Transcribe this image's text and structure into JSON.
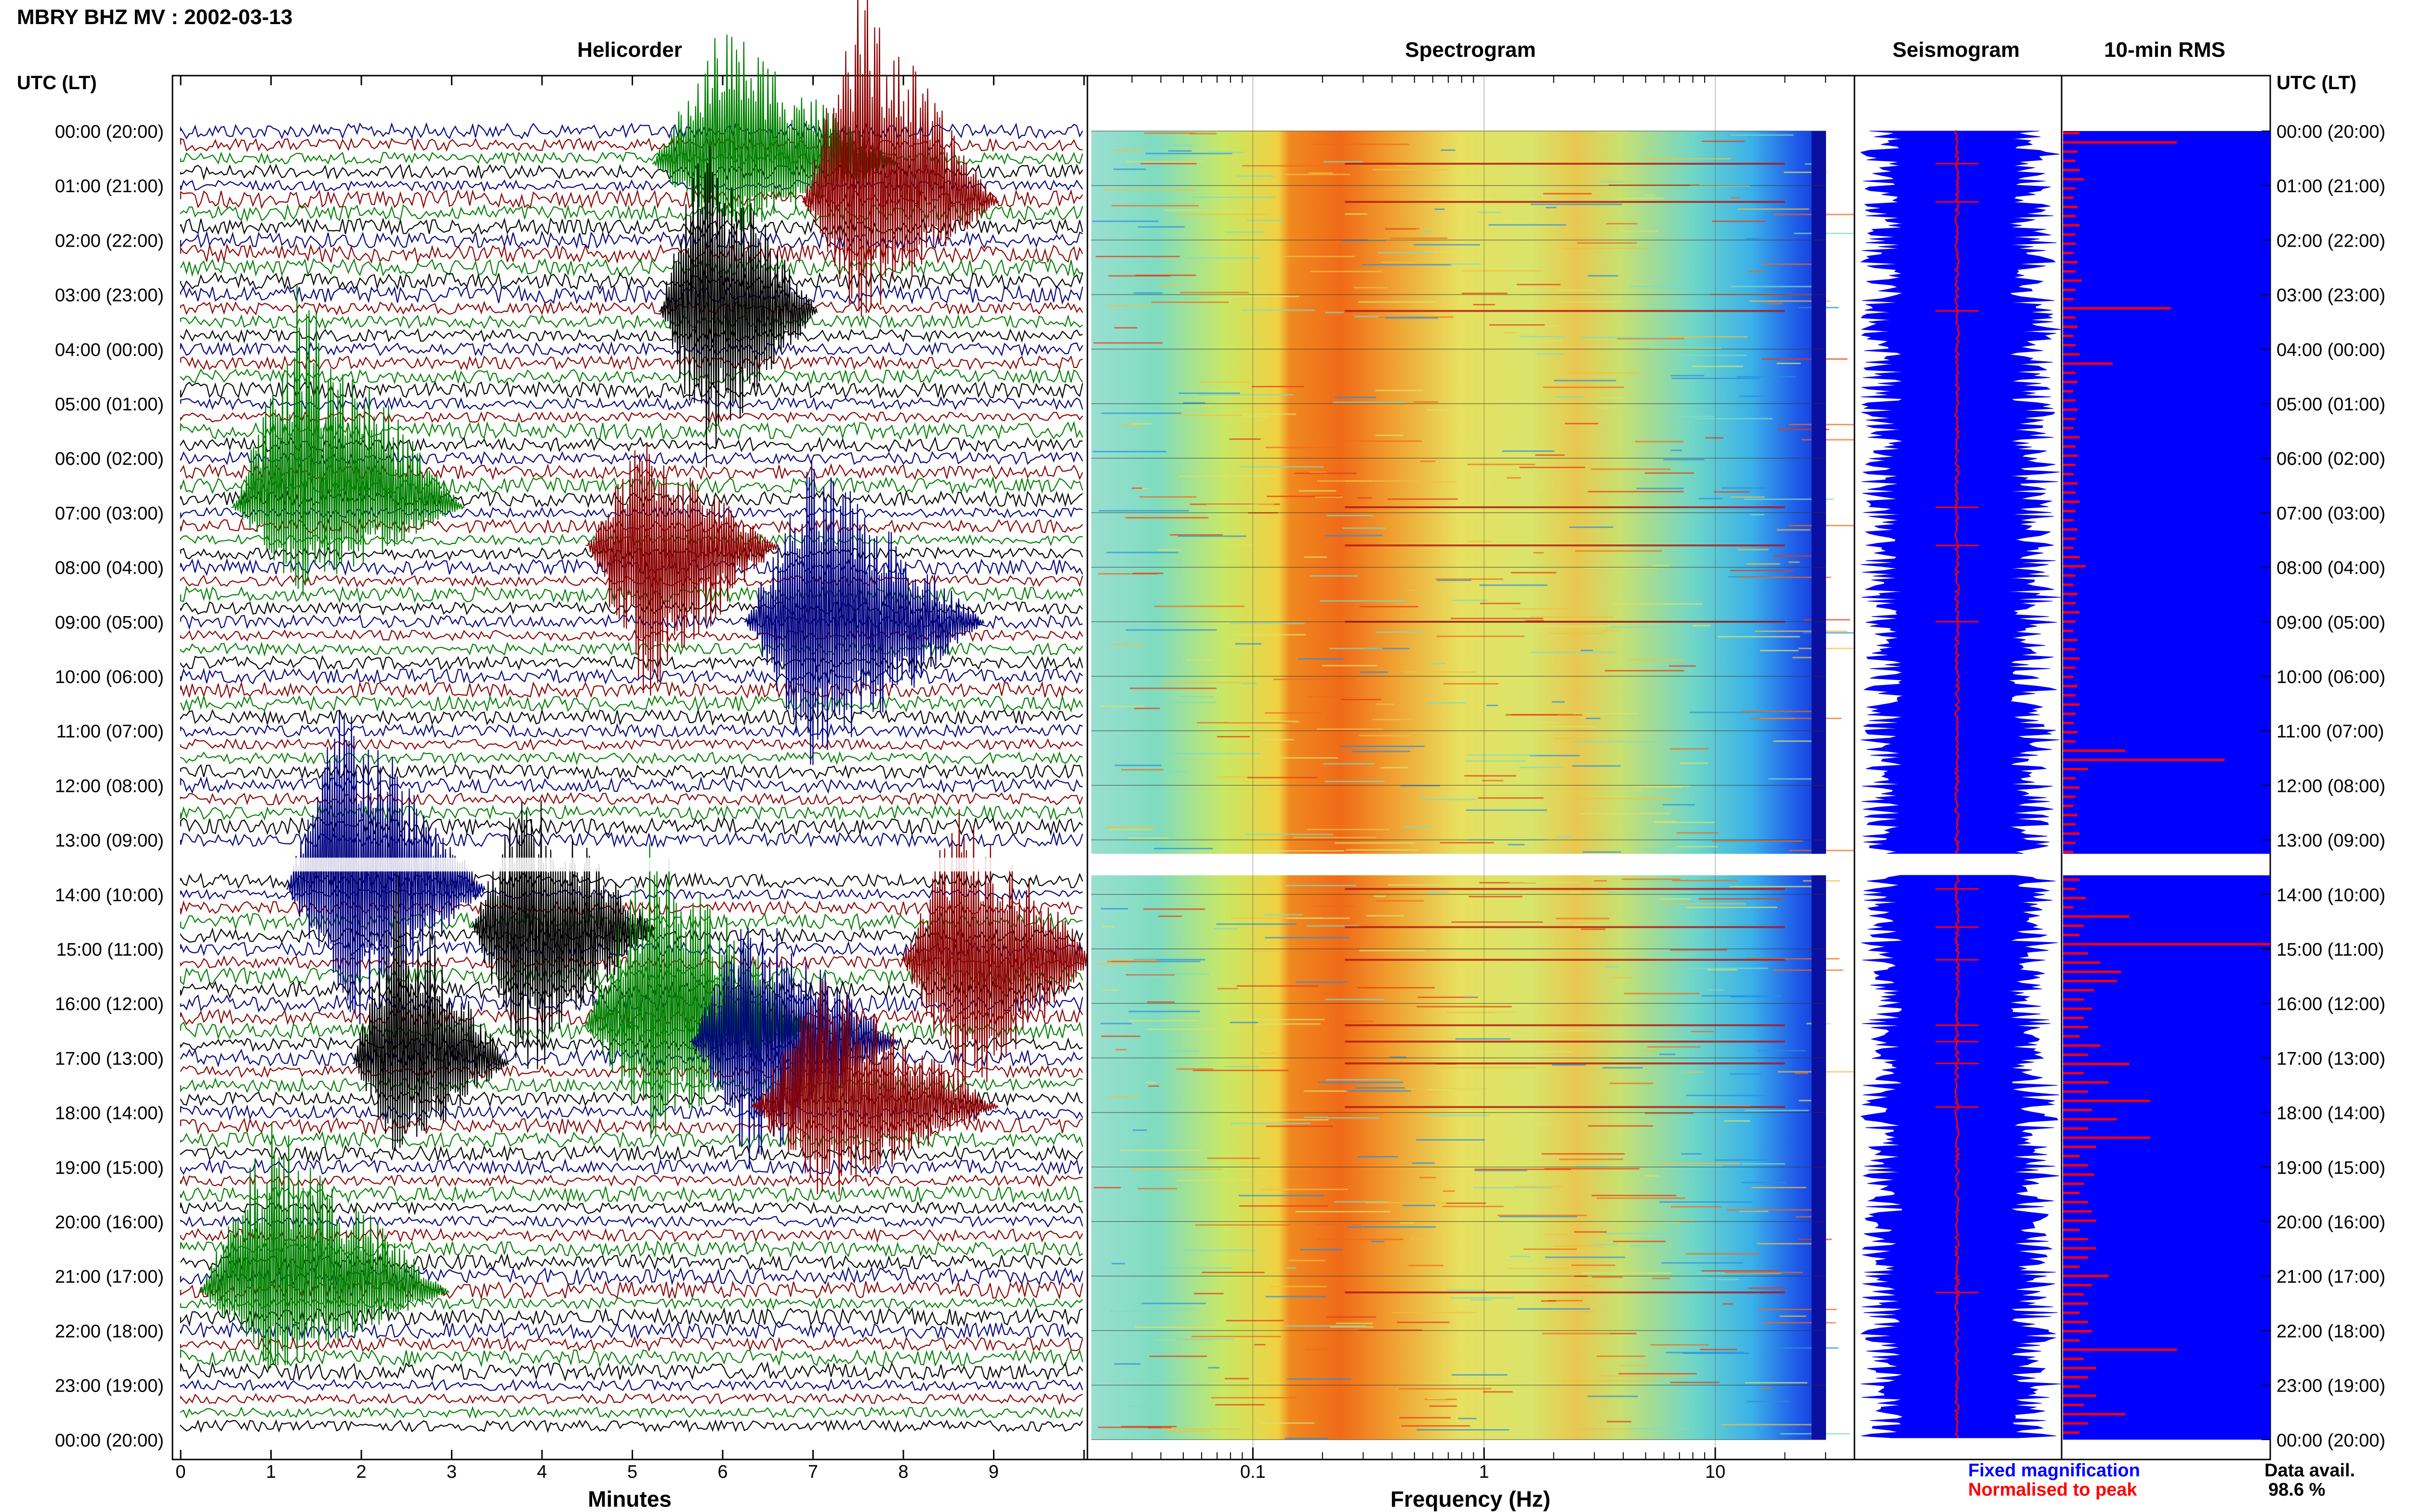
{
  "title": "MBRY BHZ MV : 2002-03-13",
  "panels": {
    "helicorder": "Helicorder",
    "spectrogram": "Spectrogram",
    "seismogram": "Seismogram",
    "rms": "10-min RMS"
  },
  "time_header": "UTC (LT)",
  "time_labels": [
    "00:00 (20:00)",
    "01:00 (21:00)",
    "02:00 (22:00)",
    "03:00 (23:00)",
    "04:00 (00:00)",
    "05:00 (01:00)",
    "06:00 (02:00)",
    "07:00 (03:00)",
    "08:00 (04:00)",
    "09:00 (05:00)",
    "10:00 (06:00)",
    "11:00 (07:00)",
    "12:00 (08:00)",
    "13:00 (09:00)",
    "14:00 (10:00)",
    "15:00 (11:00)",
    "16:00 (12:00)",
    "17:00 (13:00)",
    "18:00 (14:00)",
    "19:00 (15:00)",
    "20:00 (16:00)",
    "21:00 (17:00)",
    "22:00 (18:00)",
    "23:00 (19:00)",
    "00:00 (20:00)"
  ],
  "legend": {
    "fixed": "Fixed magnification",
    "normalised": "Normalised to peak",
    "avail_label": "Data avail.",
    "avail_value": "98.6 %"
  },
  "colors": {
    "blue": "#0000ff",
    "red": "#ff0000",
    "heli_blue": "#000080",
    "heli_red": "#8b0000",
    "heli_green": "#008000",
    "heli_black": "#000000"
  },
  "chart_data": [
    {
      "type": "line",
      "name": "helicorder",
      "title": "Helicorder",
      "xlabel": "Minutes",
      "xticks": [
        "0",
        "1",
        "2",
        "3",
        "4",
        "5",
        "6",
        "7",
        "8",
        "9"
      ],
      "xlim": [
        0,
        10
      ],
      "trace_colors": [
        "#000080",
        "#8b0000",
        "#008000",
        "#000000"
      ],
      "large_events": [
        {
          "hour": 0.6,
          "minute": 6.0,
          "color": "#008000"
        },
        {
          "hour": 1.3,
          "minute": 7.5,
          "color": "#8b0000"
        },
        {
          "hour": 3.3,
          "minute": 5.8,
          "color": "#000000"
        },
        {
          "hour": 6.9,
          "minute": 1.3,
          "color": "#008000"
        },
        {
          "hour": 7.6,
          "minute": 5.1,
          "color": "#8b0000"
        },
        {
          "hour": 9.0,
          "minute": 7.0,
          "color": "#000080"
        },
        {
          "hour": 13.9,
          "minute": 1.8,
          "color": "#000080"
        },
        {
          "hour": 14.6,
          "minute": 3.8,
          "color": "#000000"
        },
        {
          "hour": 15.2,
          "minute": 8.6,
          "color": "#8b0000"
        },
        {
          "hour": 16.4,
          "minute": 5.2,
          "color": "#008000"
        },
        {
          "hour": 16.7,
          "minute": 6.3,
          "color": "#000080"
        },
        {
          "hour": 17.1,
          "minute": 2.4,
          "color": "#000000"
        },
        {
          "hour": 17.9,
          "minute": 7.1,
          "color": "#8b0000"
        },
        {
          "hour": 21.3,
          "minute": 1.0,
          "color": "#008000"
        }
      ],
      "gap_hours": [
        13.2,
        13.5
      ]
    },
    {
      "type": "heatmap",
      "name": "spectrogram",
      "title": "Spectrogram",
      "xlabel": "Frequency (Hz)",
      "xscale": "log",
      "xticks": [
        "0.1",
        "1",
        "10"
      ],
      "xlim": [
        0.02,
        40
      ],
      "peak_band_hz": [
        0.2,
        0.5
      ],
      "secondary_band_hz": [
        2.5,
        4.5
      ],
      "gap_hours": [
        13.2,
        13.5
      ]
    },
    {
      "type": "line",
      "name": "seismogram",
      "title": "Seismogram",
      "series": [
        {
          "name": "Fixed magnification",
          "color": "#0000ff"
        },
        {
          "name": "Normalised to peak",
          "color": "#ff0000"
        }
      ]
    },
    {
      "type": "bar",
      "name": "rms",
      "title": "10-min RMS",
      "orientation": "horizontal",
      "series": [
        {
          "name": "Fixed magnification",
          "color": "#0000ff",
          "value": 1.0
        },
        {
          "name": "Normalised to peak",
          "color": "#ff0000",
          "values": [
            0.08,
            0.55,
            0.07,
            0.06,
            0.08,
            0.1,
            0.06,
            0.05,
            0.07,
            0.06,
            0.08,
            0.06,
            0.06,
            0.05,
            0.07,
            0.06,
            0.09,
            0.06,
            0.05,
            0.52,
            0.06,
            0.07,
            0.05,
            0.06,
            0.08,
            0.24,
            0.06,
            0.07,
            0.05,
            0.06,
            0.07,
            0.06,
            0.05,
            0.08,
            0.06,
            0.07,
            0.06,
            0.05,
            0.07,
            0.06,
            0.08,
            0.06,
            0.05,
            0.07,
            0.06,
            0.05,
            0.08,
            0.11,
            0.06,
            0.05,
            0.07,
            0.06,
            0.08,
            0.06,
            0.05,
            0.07,
            0.06,
            0.08,
            0.06,
            0.05,
            0.07,
            0.06,
            0.08,
            0.06,
            0.05,
            0.07,
            0.06,
            0.3,
            0.78,
            0.12,
            0.06,
            0.08,
            0.06,
            0.05,
            0.07,
            0.06,
            0.08,
            0.06,
            0.05,
            0.07,
            0.07,
            0.08,
            0.06,
            0.11,
            0.05,
            0.32,
            0.1,
            0.08,
            1.0,
            0.12,
            0.18,
            0.28,
            0.26,
            0.15,
            0.1,
            0.14,
            0.1,
            0.12,
            0.08,
            0.18,
            0.12,
            0.32,
            0.1,
            0.22,
            0.12,
            0.42,
            0.14,
            0.26,
            0.12,
            0.42,
            0.16,
            0.08,
            0.12,
            0.15,
            0.1,
            0.08,
            0.12,
            0.14,
            0.16,
            0.08,
            0.12,
            0.16,
            0.12,
            0.08,
            0.22,
            0.14,
            0.1,
            0.12,
            0.08,
            0.12,
            0.14,
            0.08,
            0.55,
            0.1,
            0.16,
            0.12,
            0.08,
            0.16,
            0.1,
            0.3,
            0.12,
            0.08
          ]
        }
      ]
    }
  ]
}
